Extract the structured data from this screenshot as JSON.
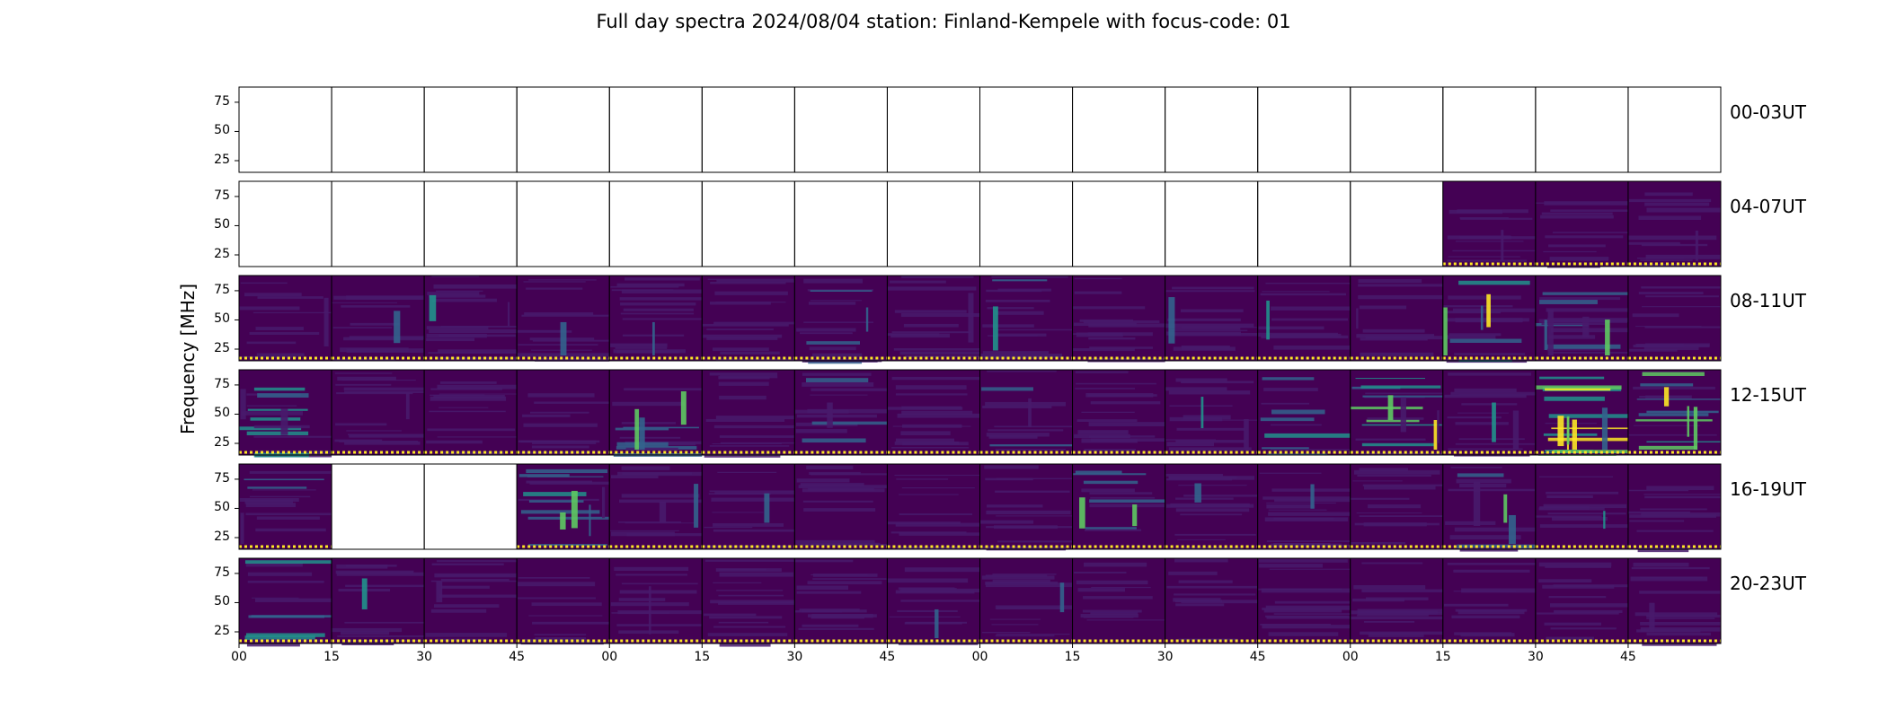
{
  "title": "Full day spectra 2024/08/04 station: Finland-Kempele with focus-code: 01",
  "colors": {
    "background": "#440154",
    "low": "#481a6c",
    "mid": "#33638d",
    "teal": "#21918c",
    "green": "#5ec962",
    "yellow": "#fde725",
    "frame": "#000000"
  },
  "chart_data": {
    "type": "heatmap",
    "title": "Full day spectra 2024/08/04 station: Finland-Kempele with focus-code: 01",
    "ylabel": "Frequency [MHz]",
    "ylim": [
      15,
      88
    ],
    "yticks": [
      75,
      50,
      25
    ],
    "xlabel": "",
    "xticks": [
      "00",
      "15",
      "30",
      "45",
      "00",
      "15",
      "30",
      "45",
      "00",
      "15",
      "30",
      "45",
      "00",
      "15",
      "30",
      "45"
    ],
    "grid": false,
    "rows": [
      {
        "label": "00-03UT",
        "data_present": [
          false,
          false,
          false,
          false,
          false,
          false,
          false,
          false,
          false,
          false,
          false,
          false,
          false,
          false,
          false,
          false
        ],
        "intensity": [
          0,
          0,
          0,
          0,
          0,
          0,
          0,
          0,
          0,
          0,
          0,
          0,
          0,
          0,
          0,
          0
        ]
      },
      {
        "label": "04-07UT",
        "data_present": [
          false,
          false,
          false,
          false,
          false,
          false,
          false,
          false,
          false,
          false,
          false,
          false,
          false,
          true,
          true,
          true
        ],
        "intensity": [
          0,
          0,
          0,
          0,
          0,
          0,
          0,
          0,
          0,
          0,
          0,
          0,
          0,
          0.3,
          0.2,
          0.25
        ]
      },
      {
        "label": "08-11UT",
        "data_present": [
          true,
          true,
          true,
          true,
          true,
          true,
          true,
          true,
          true,
          true,
          true,
          true,
          true,
          true,
          true,
          true
        ],
        "intensity": [
          0.2,
          0.3,
          0.25,
          0.2,
          0.25,
          0.2,
          0.35,
          0.2,
          0.4,
          0.2,
          0.2,
          0.2,
          0.25,
          0.55,
          0.45,
          0.25
        ]
      },
      {
        "label": "12-15UT",
        "data_present": [
          true,
          true,
          true,
          true,
          true,
          true,
          true,
          true,
          true,
          true,
          true,
          true,
          true,
          true,
          true,
          true
        ],
        "intensity": [
          0.6,
          0.25,
          0.25,
          0.25,
          0.4,
          0.2,
          0.45,
          0.3,
          0.35,
          0.25,
          0.3,
          0.5,
          0.9,
          0.3,
          0.85,
          0.8
        ]
      },
      {
        "label": "16-19UT",
        "data_present": [
          true,
          false,
          false,
          true,
          true,
          true,
          true,
          true,
          true,
          true,
          true,
          true,
          true,
          true,
          true,
          true
        ],
        "intensity": [
          0.4,
          0,
          0,
          0.5,
          0.25,
          0.25,
          0.3,
          0.25,
          0.25,
          0.5,
          0.25,
          0.25,
          0.25,
          0.35,
          0.25,
          0.2
        ]
      },
      {
        "label": "20-23UT",
        "data_present": [
          true,
          true,
          true,
          true,
          true,
          true,
          true,
          true,
          true,
          true,
          true,
          true,
          true,
          true,
          true,
          true
        ],
        "intensity": [
          0.55,
          0.2,
          0.2,
          0.2,
          0.2,
          0.2,
          0.2,
          0.15,
          0.15,
          0.15,
          0.15,
          0.15,
          0.15,
          0.15,
          0.15,
          0.15
        ]
      }
    ]
  }
}
